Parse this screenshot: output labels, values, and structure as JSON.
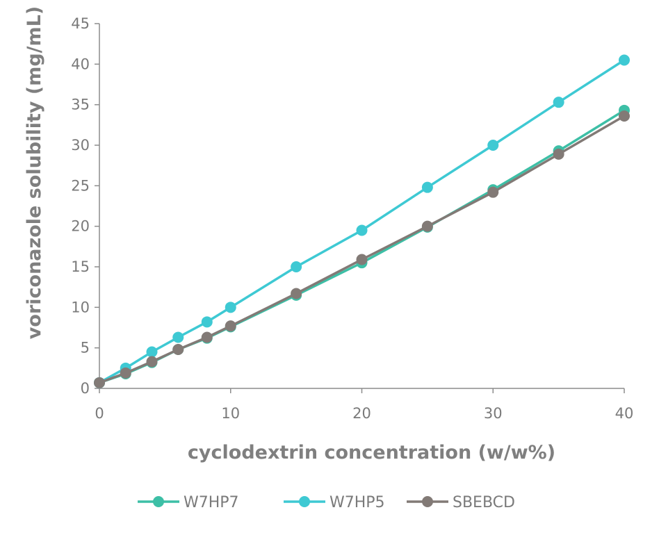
{
  "chart_data": {
    "type": "line",
    "title": "",
    "xlabel": "cyclodextrin concentration (w/w%)",
    "ylabel": "voriconazole solubility (mg/mL)",
    "xlim": [
      0,
      40
    ],
    "ylim": [
      0,
      45
    ],
    "xticks": [
      "0",
      "10",
      "20",
      "30",
      "40"
    ],
    "yticks": [
      "0",
      "5",
      "10",
      "15",
      "20",
      "25",
      "30",
      "35",
      "40",
      "45"
    ],
    "grid": false,
    "legend_position": "bottom",
    "series": [
      {
        "name": "W7HP7",
        "color": "#3dbfa6",
        "x": [
          0,
          2,
          4,
          6,
          8.2,
          10,
          15,
          20,
          25,
          30,
          35,
          40
        ],
        "y": [
          0.7,
          1.8,
          3.2,
          4.8,
          6.2,
          7.6,
          11.5,
          15.5,
          19.9,
          24.5,
          29.3,
          34.3
        ]
      },
      {
        "name": "W7HP5",
        "color": "#3ec9d3",
        "x": [
          0,
          2,
          4,
          6,
          8.2,
          10,
          15,
          20,
          25,
          30,
          35,
          40
        ],
        "y": [
          0.7,
          2.5,
          4.5,
          6.3,
          8.2,
          10.0,
          15.0,
          19.5,
          24.8,
          30.0,
          35.3,
          40.5
        ]
      },
      {
        "name": "SBEBCD",
        "color": "#827a76",
        "x": [
          0,
          2,
          4,
          6,
          8.2,
          10,
          15,
          20,
          25,
          30,
          35,
          40
        ],
        "y": [
          0.7,
          1.9,
          3.3,
          4.8,
          6.3,
          7.7,
          11.7,
          15.9,
          20.0,
          24.2,
          28.9,
          33.6
        ]
      }
    ]
  }
}
